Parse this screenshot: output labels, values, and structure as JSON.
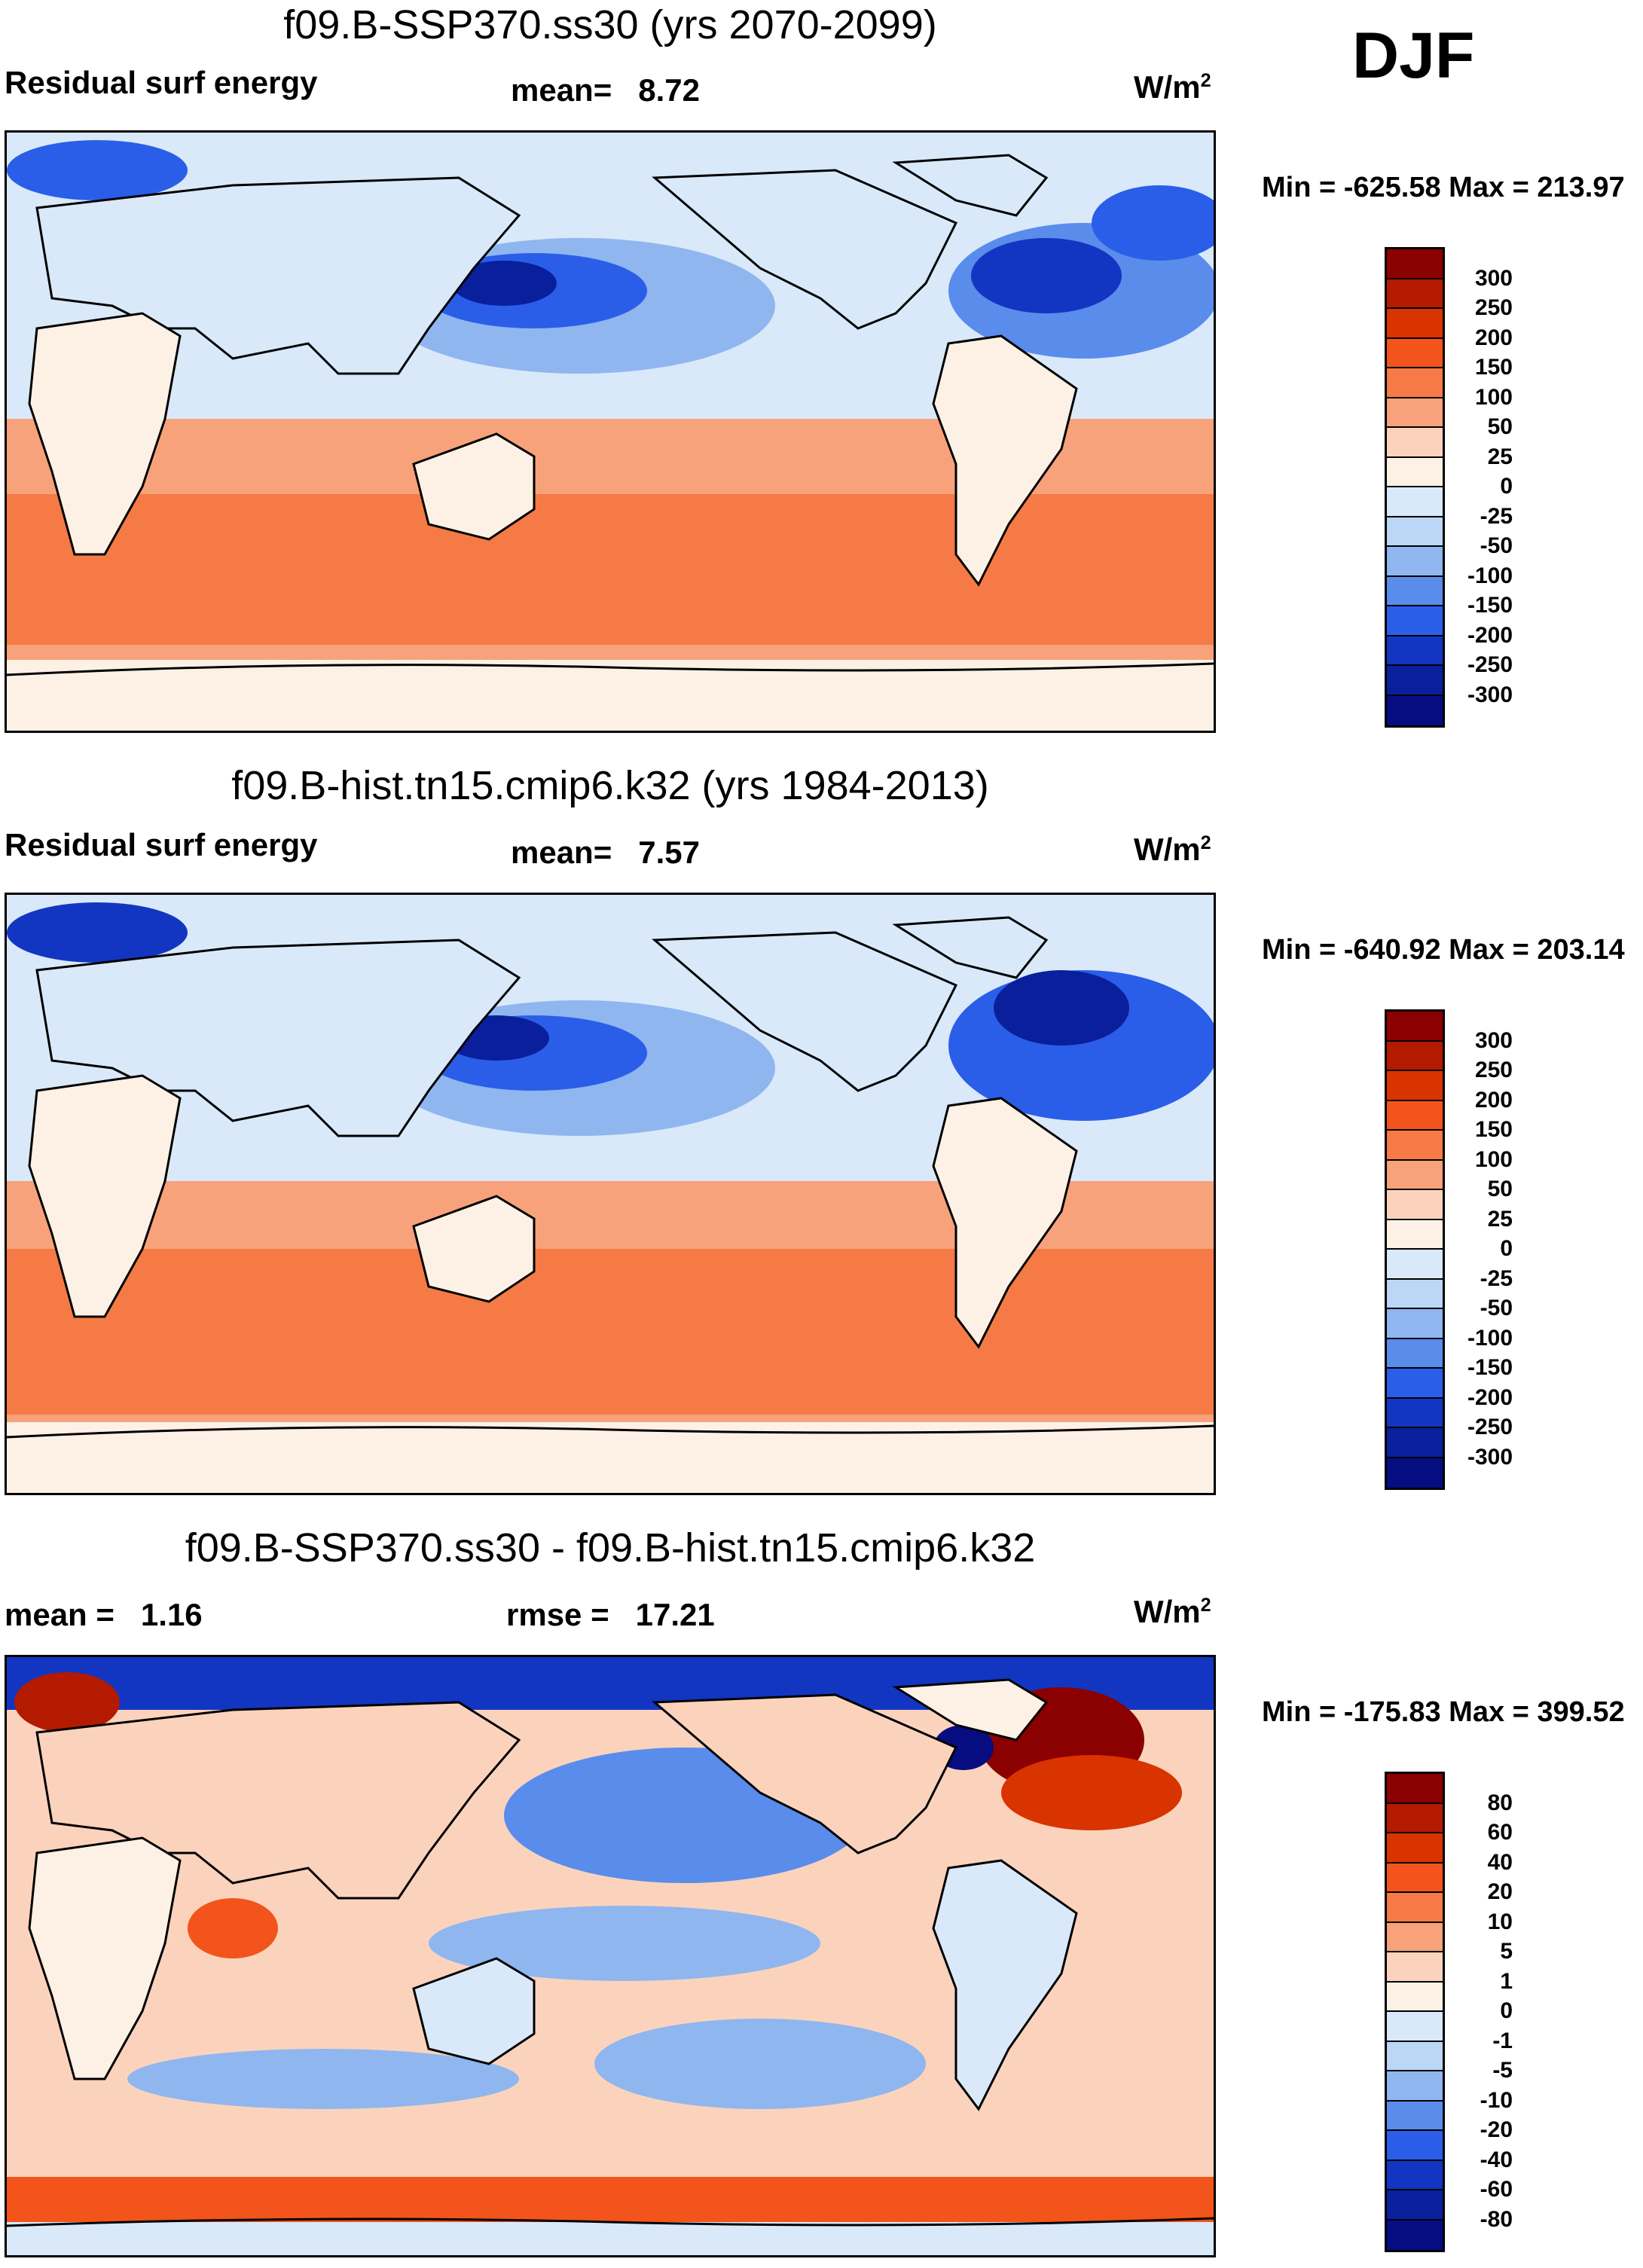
{
  "season": "DJF",
  "panels": [
    {
      "title": "f09.B-SSP370.ss30 (yrs 2070-2099)",
      "left_label": "Residual surf energy",
      "mid_label": "mean=   8.72",
      "units": "W/m",
      "units_sup": "2",
      "minmax": "Min = -625.58 Max = 213.97",
      "map_variant": "future"
    },
    {
      "title": "f09.B-hist.tn15.cmip6.k32 (yrs 1984-2013)",
      "left_label": "Residual surf energy",
      "mid_label": "mean=   7.57",
      "units": "W/m",
      "units_sup": "2",
      "minmax": "Min = -640.92 Max = 203.14",
      "map_variant": "hist"
    },
    {
      "title": "f09.B-SSP370.ss30 - f09.B-hist.tn15.cmip6.k32",
      "left_label": "mean =   1.16",
      "mid_label": "rmse =   17.21",
      "units": "W/m",
      "units_sup": "2",
      "minmax": "Min = -175.83 Max = 399.52",
      "map_variant": "diff"
    }
  ],
  "colorbars": {
    "absolute": {
      "labels": [
        "300",
        "250",
        "200",
        "150",
        "100",
        "50",
        "25",
        "0",
        "-25",
        "-50",
        "-100",
        "-150",
        "-200",
        "-250",
        "-300"
      ],
      "colors": [
        "#8b0000",
        "#b31a00",
        "#d93300",
        "#f2541b",
        "#f57a45",
        "#f7a27a",
        "#fbd3bd",
        "#fdf1e6",
        "#d9e9fa",
        "#bcd6f5",
        "#8fb6ef",
        "#5a8cec",
        "#2a5ee8",
        "#1236c2",
        "#0a1f9c",
        "#050d80"
      ]
    },
    "difference": {
      "labels": [
        "80",
        "60",
        "40",
        "20",
        "10",
        "5",
        "1",
        "0",
        "-1",
        "-5",
        "-10",
        "-20",
        "-40",
        "-60",
        "-80"
      ],
      "colors": [
        "#8b0000",
        "#b31a00",
        "#d93300",
        "#f2541b",
        "#f57a45",
        "#f7a27a",
        "#fbd3bd",
        "#fdf1e6",
        "#d9e9fa",
        "#bcd6f5",
        "#8fb6ef",
        "#5a8cec",
        "#2a5ee8",
        "#1236c2",
        "#0a1f9c",
        "#050d80"
      ]
    }
  }
}
